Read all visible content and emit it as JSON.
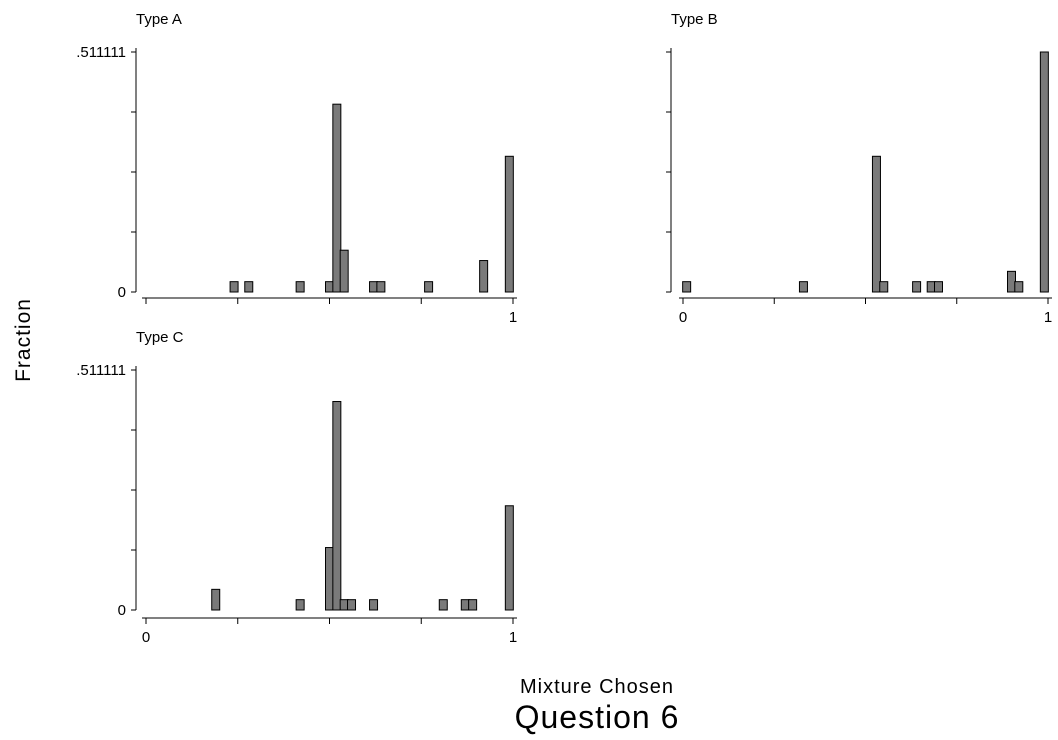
{
  "figure": {
    "title": "Question 6",
    "xlabel": "Mixture Chosen",
    "ylabel": "Fraction"
  },
  "chart_data": [
    {
      "type": "bar",
      "title": "Type A",
      "xlim": [
        0,
        1
      ],
      "ylim": [
        0,
        0.511111
      ],
      "ytick_labels": [
        "0",
        ".511111"
      ],
      "xtick_labels": [
        "1"
      ],
      "bars": [
        {
          "x": 0.24,
          "y": 0.022
        },
        {
          "x": 0.28,
          "y": 0.022
        },
        {
          "x": 0.42,
          "y": 0.022
        },
        {
          "x": 0.5,
          "y": 0.022
        },
        {
          "x": 0.52,
          "y": 0.4
        },
        {
          "x": 0.54,
          "y": 0.089
        },
        {
          "x": 0.62,
          "y": 0.022
        },
        {
          "x": 0.64,
          "y": 0.022
        },
        {
          "x": 0.77,
          "y": 0.022
        },
        {
          "x": 0.92,
          "y": 0.067
        },
        {
          "x": 0.99,
          "y": 0.289
        }
      ]
    },
    {
      "type": "bar",
      "title": "Type B",
      "xlim": [
        0,
        1
      ],
      "ylim": [
        0,
        0.511111
      ],
      "ytick_labels": [],
      "xtick_labels": [
        "0",
        "1"
      ],
      "bars": [
        {
          "x": 0.01,
          "y": 0.022
        },
        {
          "x": 0.33,
          "y": 0.022
        },
        {
          "x": 0.53,
          "y": 0.289
        },
        {
          "x": 0.55,
          "y": 0.022
        },
        {
          "x": 0.64,
          "y": 0.022
        },
        {
          "x": 0.68,
          "y": 0.022
        },
        {
          "x": 0.7,
          "y": 0.022
        },
        {
          "x": 0.9,
          "y": 0.044
        },
        {
          "x": 0.92,
          "y": 0.022
        },
        {
          "x": 0.99,
          "y": 0.511111
        }
      ]
    },
    {
      "type": "bar",
      "title": "Type C",
      "xlim": [
        0,
        1
      ],
      "ylim": [
        0,
        0.511111
      ],
      "ytick_labels": [
        "0",
        ".511111"
      ],
      "xtick_labels": [
        "0",
        "1"
      ],
      "bars": [
        {
          "x": 0.19,
          "y": 0.044
        },
        {
          "x": 0.42,
          "y": 0.022
        },
        {
          "x": 0.5,
          "y": 0.133
        },
        {
          "x": 0.52,
          "y": 0.444
        },
        {
          "x": 0.54,
          "y": 0.022
        },
        {
          "x": 0.56,
          "y": 0.022
        },
        {
          "x": 0.62,
          "y": 0.022
        },
        {
          "x": 0.81,
          "y": 0.022
        },
        {
          "x": 0.87,
          "y": 0.022
        },
        {
          "x": 0.89,
          "y": 0.022
        },
        {
          "x": 0.99,
          "y": 0.222
        }
      ]
    }
  ]
}
